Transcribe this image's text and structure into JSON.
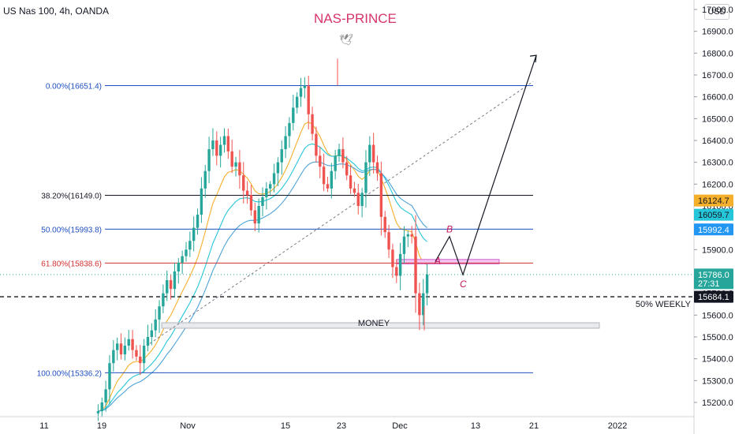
{
  "header": {
    "symbol_line": "US Nas 100, 4h, OANDA",
    "brand": "NAS-PRINCE",
    "currency": "USD"
  },
  "colors": {
    "up": "#26a69a",
    "down": "#ef5350",
    "fib_blue": "#1f4fbf",
    "fib_black": "#131722",
    "fib_red": "#d32f2f",
    "ema_orange": "#f5b02b",
    "ema_cyan": "#26c6da",
    "ema_blue": "#4fa3d8",
    "wave_label": "#c2185b",
    "zone_pink": "#d05fcf"
  },
  "icons": {
    "bird": "dove-icon"
  },
  "chart_data": {
    "type": "candlestick",
    "title": "",
    "ylim": [
      15150,
      17050
    ],
    "y_ticks": [
      15200,
      15300,
      15400,
      15500,
      15600,
      15700,
      15800,
      15900,
      16000,
      16100,
      16200,
      16300,
      16400,
      16500,
      16600,
      16700,
      16800,
      16900,
      17000
    ],
    "y_tick_labels": [
      "15200.0",
      "15300.0",
      "15400.0",
      "15500.0",
      "15600.0",
      "15700.0",
      "15800.0",
      "15900.0",
      "16000.0",
      "16100.0",
      "16200.0",
      "16300.0",
      "16400.0",
      "16500.0",
      "16600.0",
      "16700.0",
      "16800.0",
      "16900.0",
      "17000.0"
    ],
    "x_tick_labels": [
      "11",
      "19",
      "Nov",
      "15",
      "23",
      "Dec",
      "13",
      "21",
      "2022"
    ],
    "fib_levels": [
      {
        "label": "0.00%(16651.4)",
        "value": 16651.4,
        "color_key": "fib_blue"
      },
      {
        "label": "38.20%(16149.0)",
        "value": 16149.0,
        "color_key": "fib_black"
      },
      {
        "label": "50.00%(15993.8)",
        "value": 15993.8,
        "color_key": "fib_blue"
      },
      {
        "label": "61.80%(15838.6)",
        "value": 15838.6,
        "color_key": "fib_red"
      },
      {
        "label": "100.00%(15336.2)",
        "value": 15336.2,
        "color_key": "fib_blue"
      }
    ],
    "price_badges": [
      {
        "value": "16124.7",
        "bg": "#f5b02b",
        "fg": "#131722",
        "y": 16124.7
      },
      {
        "value": "16059.7",
        "bg": "#26c6da",
        "fg": "#131722",
        "y": 16059.7
      },
      {
        "value": "15992.4",
        "bg": "#2196f3",
        "fg": "#ffffff",
        "y": 15992.4
      },
      {
        "value": "15786.0",
        "bg": "#26a69a",
        "fg": "#ffffff",
        "y": 15786.0,
        "sub": "27:31"
      },
      {
        "value": "15684.1",
        "bg": "#131722",
        "fg": "#ffffff",
        "y": 15684.1
      }
    ],
    "annotations": {
      "weekly": "50% WEEKLY",
      "weekly_value": 15684.1,
      "money": "MONEY",
      "wave_a": "A",
      "wave_b": "B",
      "wave_c": "C"
    },
    "ohlc_path": [
      15150,
      15160,
      15200,
      15260,
      15380,
      15440,
      15470,
      15420,
      15460,
      15490,
      15440,
      15410,
      15380,
      15460,
      15500,
      15530,
      15580,
      15640,
      15700,
      15760,
      15720,
      15800,
      15840,
      15870,
      15900,
      15940,
      16000,
      16060,
      16180,
      16260,
      16360,
      16400,
      16330,
      16380,
      16420,
      16350,
      16280,
      16300,
      16240,
      16170,
      16150,
      16080,
      16020,
      16100,
      16140,
      16180,
      16200,
      16250,
      16300,
      16360,
      16420,
      16480,
      16550,
      16600,
      16640,
      16651,
      16520,
      16430,
      16330,
      16280,
      16200,
      16180,
      16260,
      16330,
      16360,
      16300,
      16240,
      16180,
      16160,
      16100,
      16160,
      16300,
      16380,
      16300,
      16250,
      16050,
      15980,
      15900,
      15820,
      15780,
      15880,
      15960,
      15970,
      15960,
      15700,
      15600,
      15700,
      15786
    ]
  }
}
